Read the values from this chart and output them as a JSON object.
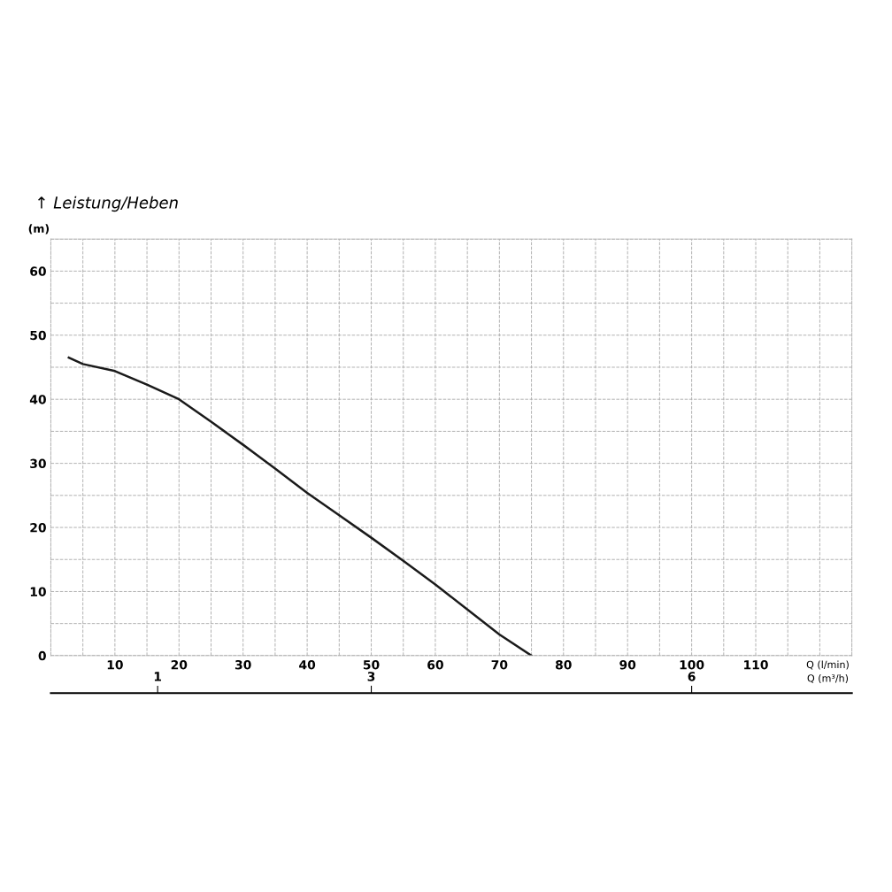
{
  "chart_data": {
    "type": "line",
    "title": "↑ Leistung/Heben",
    "ylabel": "(m)",
    "xlabel": "Q (l/min)",
    "x2label": "Q (m³/h)",
    "x": [
      2.8,
      5,
      10,
      15,
      20,
      25,
      30,
      35,
      40,
      45,
      50,
      55,
      60,
      65,
      70,
      75
    ],
    "series": [
      {
        "color": "#1a1a1a",
        "values": [
          46.5,
          45.5,
          44.4,
          42.3,
          40.0,
          36.5,
          32.9,
          29.2,
          25.4,
          21.9,
          18.4,
          14.8,
          11.1,
          7.2,
          3.3,
          0
        ]
      }
    ],
    "xlim": [
      0,
      125
    ],
    "ylim": [
      0,
      65
    ],
    "xticks": [
      {
        "value": 5,
        "label": null
      },
      10,
      {
        "value": 15,
        "label": null
      },
      20,
      {
        "value": 25,
        "label": null
      },
      30,
      {
        "value": 35,
        "label": null
      },
      40,
      {
        "value": 45,
        "label": null
      },
      50,
      {
        "value": 55,
        "label": null
      },
      60,
      {
        "value": 65,
        "label": null
      },
      70,
      {
        "value": 75,
        "label": null
      },
      80,
      {
        "value": 85,
        "label": null
      },
      90,
      {
        "value": 95,
        "label": null
      },
      100,
      {
        "value": 105,
        "label": null
      },
      110,
      {
        "value": 115,
        "label": null
      },
      {
        "value": 120,
        "label": null
      }
    ],
    "yticks": [
      0,
      {
        "value": 5,
        "label": null
      },
      10,
      {
        "value": 15,
        "label": null
      },
      20,
      {
        "value": 25,
        "label": null
      },
      30,
      {
        "value": 35,
        "label": null
      },
      40,
      {
        "value": 45,
        "label": null
      },
      50,
      {
        "value": 55,
        "label": null
      },
      60,
      {
        "value": 65,
        "label": null
      }
    ],
    "x2lim": [
      0,
      7.5
    ],
    "x2ticks": [
      1,
      3,
      6
    ],
    "grid": true,
    "marker": "none",
    "line_style": "solid"
  }
}
